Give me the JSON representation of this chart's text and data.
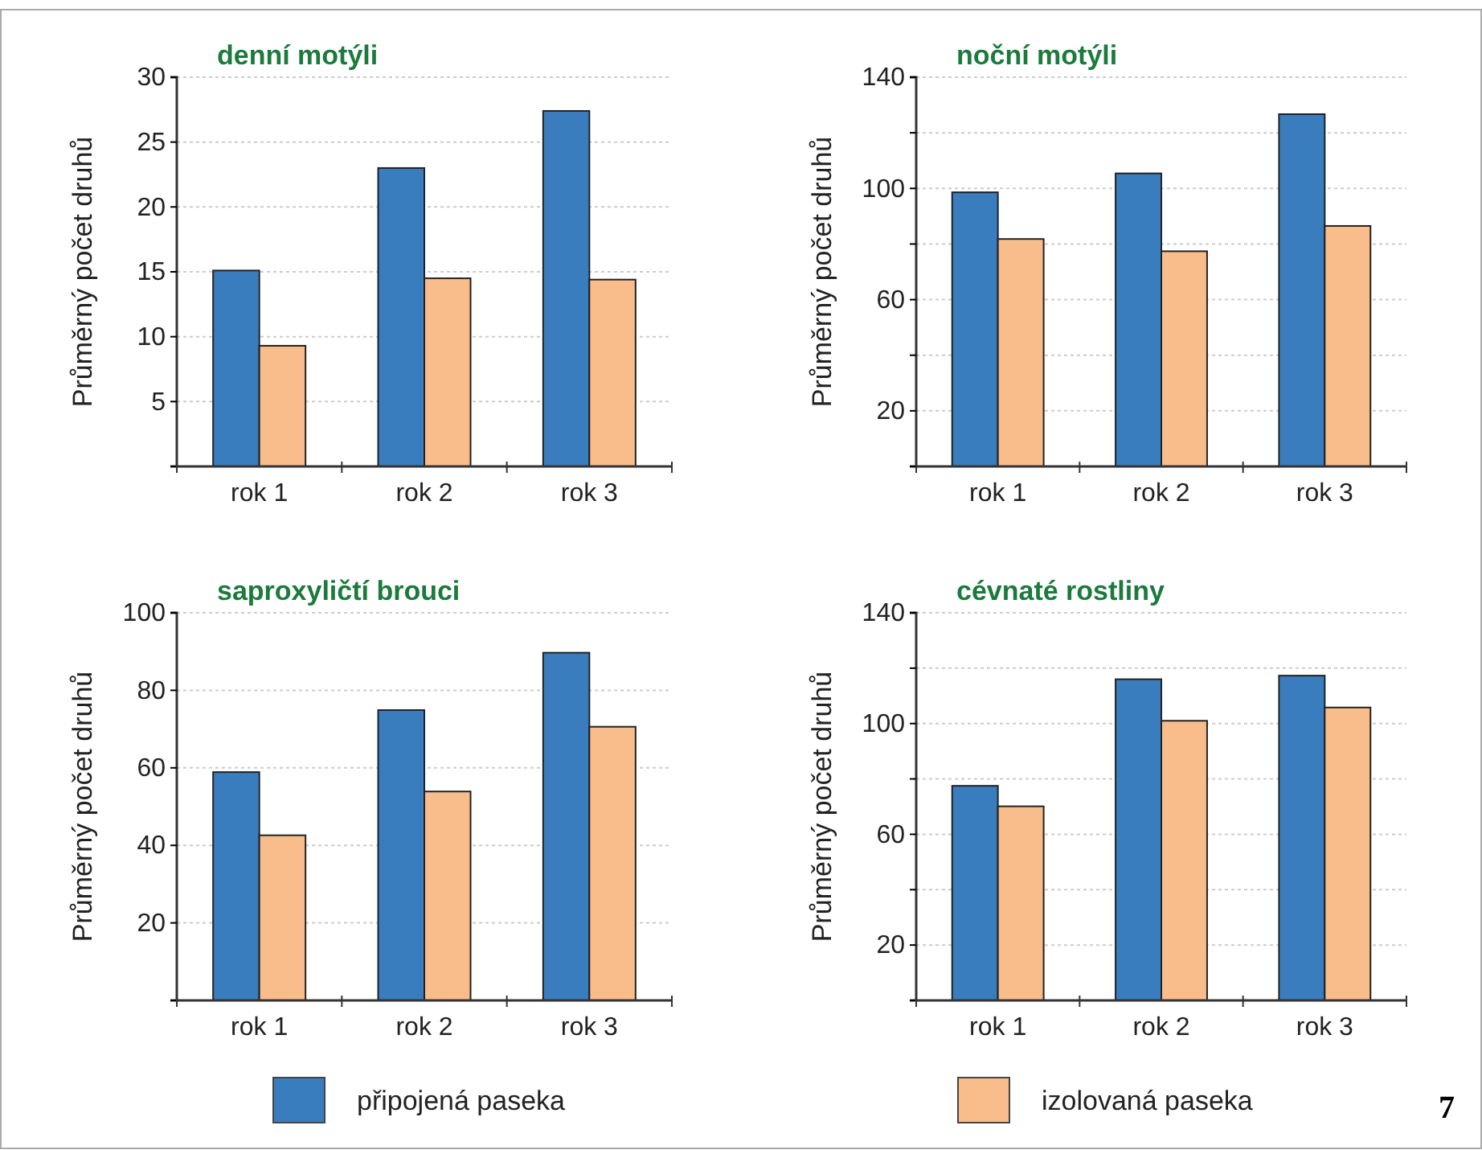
{
  "chart_data": [
    {
      "type": "bar",
      "title": "denní motýli",
      "ylabel": "Průměrný počet druhů",
      "categories": [
        "rok 1",
        "rok 2",
        "rok 3"
      ],
      "ylim": [
        0,
        30
      ],
      "yticks": [
        {
          "value": 0,
          "label": null
        },
        5,
        10,
        15,
        20,
        25,
        30
      ],
      "grid": "y",
      "legend": "bottom",
      "series": [
        {
          "name": "připojená paseka",
          "color": "#3a7dbf",
          "values": [
            15.1,
            23.0,
            27.4
          ]
        },
        {
          "name": "izolovaná paseka",
          "color": "#f9bd8b",
          "values": [
            9.3,
            14.5,
            14.4
          ]
        }
      ]
    },
    {
      "type": "bar",
      "title": "noční motýli",
      "ylabel": "Průměrný počet druhů",
      "categories": [
        "rok 1",
        "rok 2",
        "rok 3"
      ],
      "ylim": [
        0,
        140
      ],
      "yticks": [
        {
          "value": 0,
          "label": null
        },
        20,
        {
          "value": 40,
          "label": null
        },
        60,
        {
          "value": 80,
          "label": null
        },
        100,
        {
          "value": 120,
          "label": null
        },
        140
      ],
      "grid": "y",
      "series": [
        {
          "color": "#3a7dbf",
          "values": [
            98.6,
            105.4,
            126.7
          ]
        },
        {
          "color": "#f9bd8b",
          "values": [
            81.8,
            77.4,
            86.5
          ]
        }
      ]
    },
    {
      "type": "bar",
      "title": "saproxyličtí brouci",
      "ylabel": "Průměrný počet druhů",
      "categories": [
        "rok 1",
        "rok 2",
        "rok 3"
      ],
      "ylim": [
        0,
        100
      ],
      "yticks": [
        {
          "value": 0,
          "label": null
        },
        20,
        40,
        60,
        80,
        100
      ],
      "grid": "y",
      "series": [
        {
          "color": "#3a7dbf",
          "values": [
            58.9,
            74.9,
            89.7
          ]
        },
        {
          "color": "#f9bd8b",
          "values": [
            42.6,
            53.9,
            70.6
          ]
        }
      ]
    },
    {
      "type": "bar",
      "title": "cévnaté rostliny",
      "ylabel": "Průměrný počet druhů",
      "categories": [
        "rok 1",
        "rok 2",
        "rok 3"
      ],
      "ylim": [
        0,
        140
      ],
      "yticks": [
        {
          "value": 0,
          "label": null
        },
        20,
        {
          "value": 40,
          "label": null
        },
        60,
        {
          "value": 80,
          "label": null
        },
        100,
        {
          "value": 120,
          "label": null
        },
        140
      ],
      "grid": "y",
      "annotations": [
        "7"
      ],
      "series": [
        {
          "color": "#3a7dbf",
          "values": [
            77.5,
            116.0,
            117.3
          ]
        },
        {
          "color": "#f9bd8b",
          "values": [
            70.1,
            101.0,
            105.8
          ]
        }
      ]
    }
  ]
}
